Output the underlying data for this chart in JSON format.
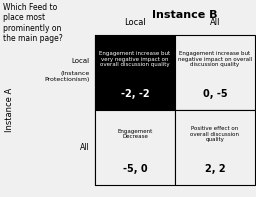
{
  "title": "Instance B",
  "col_labels": [
    "Local",
    "All"
  ],
  "row_labels_line1": "Local",
  "row_labels_line2": "(Instance\nProtectionism)",
  "row_label2": "All",
  "side_label": "Instance A",
  "top_left_question": "Which Feed to\nplace most\nprominently on\nthe main page?",
  "cells": {
    "top_left": {
      "text": "Engagement increase but\nvery negative impact on\noverall discussion quality",
      "value": "-2, -2",
      "bg": "#000000",
      "fg": "#ffffff"
    },
    "top_right": {
      "text": "Engagement increase but\nnegative impact on overall\ndiscussion quality",
      "value": "0, -5",
      "bg": "#f0f0f0",
      "fg": "#000000"
    },
    "bottom_left": {
      "text": "Engagement\nDecrease",
      "value": "-5, 0",
      "bg": "#f0f0f0",
      "fg": "#000000"
    },
    "bottom_right": {
      "text": "Positive effect on\noverall discussion\nquality",
      "value": "2, 2",
      "bg": "#f0f0f0",
      "fg": "#000000"
    }
  },
  "grid_color": "#000000",
  "background_color": "#f0f0f0"
}
